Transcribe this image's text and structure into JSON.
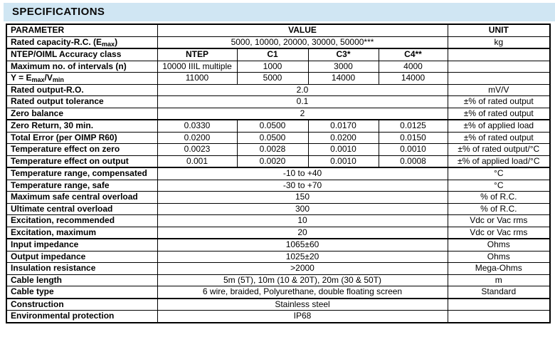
{
  "title": "SPECIFICATIONS",
  "colors": {
    "title_bar_bg": "#d0e6f3",
    "table_border": "#000000",
    "text": "#000000"
  },
  "table": {
    "header": {
      "parameter": "PARAMETER",
      "value": "VALUE",
      "unit": "UNIT"
    },
    "rows": [
      {
        "param": [
          {
            "t": "Rated capacity-R.C. (E"
          },
          {
            "t": "max",
            "sub": true
          },
          {
            "t": ")"
          }
        ],
        "values": [
          {
            "t": "5000, 10000, 20000, 30000, 50000***",
            "span": 4
          }
        ],
        "unit": "kg"
      },
      {
        "param": [
          {
            "t": "NTEP/OIML Accuracy class"
          }
        ],
        "values": [
          {
            "t": "NTEP",
            "bold": true
          },
          {
            "t": "C1",
            "bold": true
          },
          {
            "t": "C3*",
            "bold": true
          },
          {
            "t": "C4**",
            "bold": true
          }
        ],
        "unit": "",
        "thick_top": true
      },
      {
        "param": [
          {
            "t": "Maximum no. of intervals (n)"
          }
        ],
        "values": [
          {
            "t": "10000 IIIL multiple"
          },
          {
            "t": "1000"
          },
          {
            "t": "3000"
          },
          {
            "t": "4000"
          }
        ],
        "unit": ""
      },
      {
        "param": [
          {
            "t": "Y = E"
          },
          {
            "t": "max",
            "sub": true
          },
          {
            "t": "/V"
          },
          {
            "t": "min",
            "sub": true
          }
        ],
        "values": [
          {
            "t": "11000"
          },
          {
            "t": "5000"
          },
          {
            "t": "14000"
          },
          {
            "t": "14000"
          }
        ],
        "unit": ""
      },
      {
        "param": [
          {
            "t": "Rated output-R.O."
          }
        ],
        "values": [
          {
            "t": "2.0",
            "span": 4
          }
        ],
        "unit": "mV/V"
      },
      {
        "param": [
          {
            "t": "Rated output tolerance"
          }
        ],
        "values": [
          {
            "t": "0.1",
            "span": 4
          }
        ],
        "unit": "±% of rated output"
      },
      {
        "param": [
          {
            "t": "Zero balance"
          }
        ],
        "values": [
          {
            "t": "2",
            "span": 4
          }
        ],
        "unit": "±% of rated output"
      },
      {
        "param": [
          {
            "t": "Zero Return, 30 min."
          }
        ],
        "values": [
          {
            "t": "0.0330"
          },
          {
            "t": "0.0500"
          },
          {
            "t": "0.0170"
          },
          {
            "t": "0.0125"
          }
        ],
        "unit": "±% of applied load",
        "thick_top": true
      },
      {
        "param": [
          {
            "t": "Total Error (per OIMP R60)"
          }
        ],
        "values": [
          {
            "t": "0.0200"
          },
          {
            "t": "0.0500"
          },
          {
            "t": "0.0200"
          },
          {
            "t": "0.0150"
          }
        ],
        "unit": "±% of rated output"
      },
      {
        "param": [
          {
            "t": "Temperature effect on zero"
          }
        ],
        "values": [
          {
            "t": "0.0023"
          },
          {
            "t": "0.0028"
          },
          {
            "t": "0.0010"
          },
          {
            "t": "0.0010"
          }
        ],
        "unit": "±% of rated output/°C"
      },
      {
        "param": [
          {
            "t": "Temperature effect on output"
          }
        ],
        "values": [
          {
            "t": "0.001"
          },
          {
            "t": "0.0020"
          },
          {
            "t": "0.0010"
          },
          {
            "t": "0.0008"
          }
        ],
        "unit": "±% of applied load/°C"
      },
      {
        "param": [
          {
            "t": "Temperature range, compensated"
          }
        ],
        "values": [
          {
            "t": "-10 to +40",
            "span": 4
          }
        ],
        "unit": "°C",
        "thick_top": true
      },
      {
        "param": [
          {
            "t": "Temperature range, safe"
          }
        ],
        "values": [
          {
            "t": "-30 to +70",
            "span": 4
          }
        ],
        "unit": "°C"
      },
      {
        "param": [
          {
            "t": "Maximum safe central overload"
          }
        ],
        "values": [
          {
            "t": "150",
            "span": 4
          }
        ],
        "unit": "% of R.C."
      },
      {
        "param": [
          {
            "t": "Ultimate central overload"
          }
        ],
        "values": [
          {
            "t": "300",
            "span": 4
          }
        ],
        "unit": "% of R.C."
      },
      {
        "param": [
          {
            "t": "Excitation, recommended"
          }
        ],
        "values": [
          {
            "t": "10",
            "span": 4
          }
        ],
        "unit": "Vdc or Vac rms"
      },
      {
        "param": [
          {
            "t": "Excitation, maximum"
          }
        ],
        "values": [
          {
            "t": "20",
            "span": 4
          }
        ],
        "unit": "Vdc or Vac rms"
      },
      {
        "param": [
          {
            "t": "Input impedance"
          }
        ],
        "values": [
          {
            "t": "1065±60",
            "span": 4
          }
        ],
        "unit": "Ohms",
        "thick_top": true
      },
      {
        "param": [
          {
            "t": "Output impedance"
          }
        ],
        "values": [
          {
            "t": "1025±20",
            "span": 4
          }
        ],
        "unit": "Ohms"
      },
      {
        "param": [
          {
            "t": "Insulation resistance"
          }
        ],
        "values": [
          {
            "t": ">2000",
            "span": 4
          }
        ],
        "unit": "Mega-Ohms"
      },
      {
        "param": [
          {
            "t": "Cable length"
          }
        ],
        "values": [
          {
            "t": "5m (5T), 10m (10 & 20T), 20m (30 & 50T)",
            "span": 4
          }
        ],
        "unit": "m"
      },
      {
        "param": [
          {
            "t": "Cable type"
          }
        ],
        "values": [
          {
            "t": "6 wire, braided, Polyurethane, double floating screen",
            "span": 4
          }
        ],
        "unit": "Standard"
      },
      {
        "param": [
          {
            "t": "Construction"
          }
        ],
        "values": [
          {
            "t": "Stainless steel",
            "span": 4
          }
        ],
        "unit": "",
        "thick_top": true
      },
      {
        "param": [
          {
            "t": "Environmental protection"
          }
        ],
        "values": [
          {
            "t": "IP68",
            "span": 4
          }
        ],
        "unit": ""
      }
    ]
  }
}
